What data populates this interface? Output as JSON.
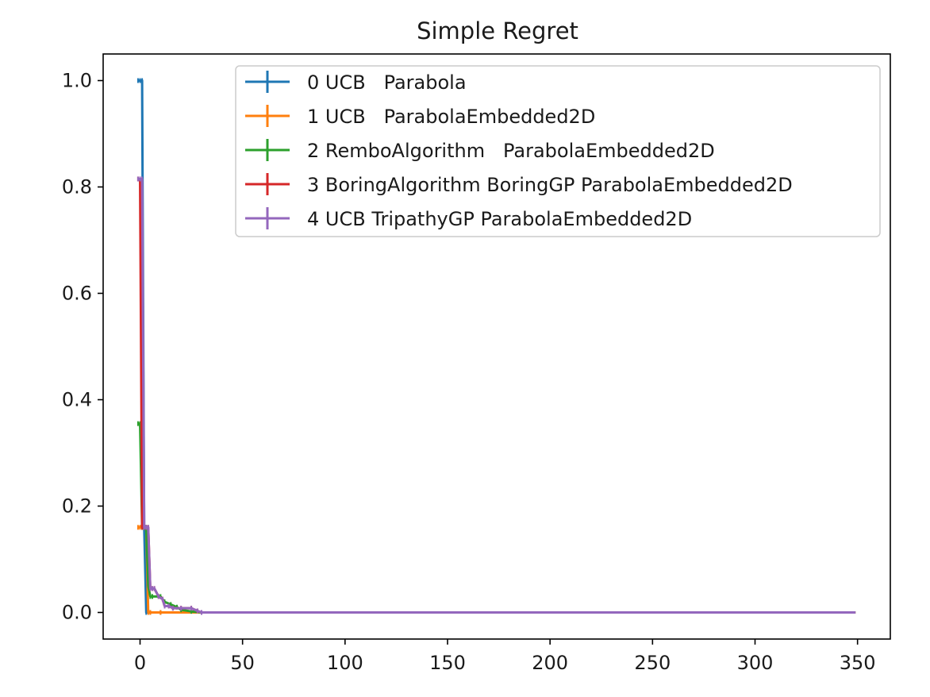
{
  "chart_data": {
    "type": "line",
    "title": "Simple Regret",
    "xlabel": "",
    "ylabel": "",
    "xlim": [
      -18,
      366
    ],
    "ylim": [
      -0.05,
      1.05
    ],
    "xticks": [
      0,
      50,
      100,
      150,
      200,
      250,
      300,
      350
    ],
    "xtick_labels": [
      "0",
      "50",
      "100",
      "150",
      "200",
      "250",
      "300",
      "350"
    ],
    "yticks": [
      0.0,
      0.2,
      0.4,
      0.6,
      0.8,
      1.0
    ],
    "ytick_labels": [
      "0.0",
      "0.2",
      "0.4",
      "0.6",
      "0.8",
      "1.0"
    ],
    "grid": false,
    "legend_position": "top-right",
    "series": [
      {
        "name": "0 UCB   Parabola",
        "color": "#1f77b4",
        "x": [
          -1,
          0,
          1,
          2,
          3,
          5,
          10,
          50,
          100,
          200,
          300,
          349
        ],
        "y": [
          1.0,
          1.0,
          1.0,
          0.16,
          0.0,
          0.0,
          0.0,
          0.0,
          0.0,
          0.0,
          0.0,
          0.0
        ]
      },
      {
        "name": "1 UCB   ParabolaEmbedded2D",
        "color": "#ff7f0e",
        "x": [
          -1,
          0,
          1,
          2,
          3,
          4,
          5,
          10,
          50,
          100,
          200,
          300,
          349
        ],
        "y": [
          0.16,
          0.16,
          0.16,
          0.16,
          0.16,
          0.0,
          0.0,
          0.0,
          0.0,
          0.0,
          0.0,
          0.0,
          0.0
        ]
      },
      {
        "name": "2 RemboAlgorithm   ParabolaEmbedded2D",
        "color": "#2ca02c",
        "x": [
          -1,
          0,
          1,
          2,
          3,
          4,
          5,
          6,
          10,
          12,
          15,
          18,
          20,
          25,
          30,
          50,
          100,
          200,
          300,
          349
        ],
        "y": [
          0.355,
          0.355,
          0.16,
          0.16,
          0.16,
          0.05,
          0.03,
          0.03,
          0.03,
          0.02,
          0.015,
          0.01,
          0.005,
          0.002,
          0.0,
          0.0,
          0.0,
          0.0,
          0.0,
          0.0
        ]
      },
      {
        "name": "3 BoringAlgorithm BoringGP ParabolaEmbedded2D",
        "color": "#d62728",
        "x": [
          -1,
          0,
          1,
          2,
          3,
          4,
          5,
          6,
          7,
          9,
          11,
          12,
          14,
          16,
          20,
          25,
          28,
          30,
          50,
          100,
          200,
          300,
          349
        ],
        "y": [
          0.815,
          0.815,
          0.16,
          0.16,
          0.16,
          0.16,
          0.045,
          0.045,
          0.045,
          0.03,
          0.025,
          0.012,
          0.012,
          0.008,
          0.008,
          0.008,
          0.003,
          0.0,
          0.0,
          0.0,
          0.0,
          0.0,
          0.0
        ]
      },
      {
        "name": "4 UCB TripathyGP ParabolaEmbedded2D",
        "color": "#9467bd",
        "x": [
          -1,
          0,
          1,
          2,
          3,
          4,
          5,
          6,
          7,
          9,
          11,
          12,
          14,
          16,
          20,
          25,
          28,
          30,
          50,
          100,
          200,
          300,
          349
        ],
        "y": [
          0.815,
          0.815,
          0.815,
          0.16,
          0.16,
          0.16,
          0.045,
          0.045,
          0.045,
          0.03,
          0.025,
          0.012,
          0.012,
          0.008,
          0.008,
          0.008,
          0.003,
          0.0,
          0.0,
          0.0,
          0.0,
          0.0,
          0.0
        ]
      }
    ]
  }
}
